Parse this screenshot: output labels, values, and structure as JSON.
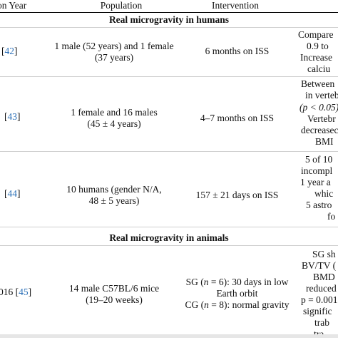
{
  "header": {
    "col1": "on Year",
    "col2": "Population",
    "col3": "Intervention"
  },
  "sections": [
    {
      "title": "Real microgravity in humans"
    },
    {
      "title": "Real microgravity in animals"
    }
  ],
  "rows": [
    {
      "c1_pre": "",
      "c1_cite": "42",
      "pop": [
        "1 male (52 years) and 1 female",
        "(37 years)"
      ],
      "int": [
        "6 months on ISS"
      ],
      "res": [
        "Compare",
        "0.9 to",
        "Increase",
        "calciu"
      ]
    },
    {
      "c1_pre": "",
      "c1_cite": "43",
      "pop": [
        "1 female and 16 males",
        "(45 ± 4 years)"
      ],
      "int": [
        "4–7 months on ISS"
      ],
      "res": [
        "Between",
        "in verteb",
        "(p < 0.05)",
        "Vertebr",
        "decreasec",
        "BMI"
      ]
    },
    {
      "c1_pre": "",
      "c1_cite": "44",
      "pop": [
        "10 humans (gender N/A,",
        "48 ± 5 years)"
      ],
      "int": [
        "157 ± 21 days on ISS"
      ],
      "res": [
        "5 of 10",
        "incompl",
        "1 year a",
        "whic",
        "5 astro",
        "fo"
      ]
    },
    {
      "c1_pre": "016",
      "c1_cite": "45",
      "pop": [
        "14 male C57BL/6 mice",
        "(19–20 weeks)"
      ],
      "int": [
        "SG (n = 6): 30 days in low",
        "Earth orbit",
        "CG (n = 8): normal gravity"
      ],
      "res": [
        "SG sh",
        "BV/TV (",
        "BMD",
        "reduced",
        "p = 0.001",
        "signific",
        "trab",
        "tra"
      ]
    }
  ]
}
